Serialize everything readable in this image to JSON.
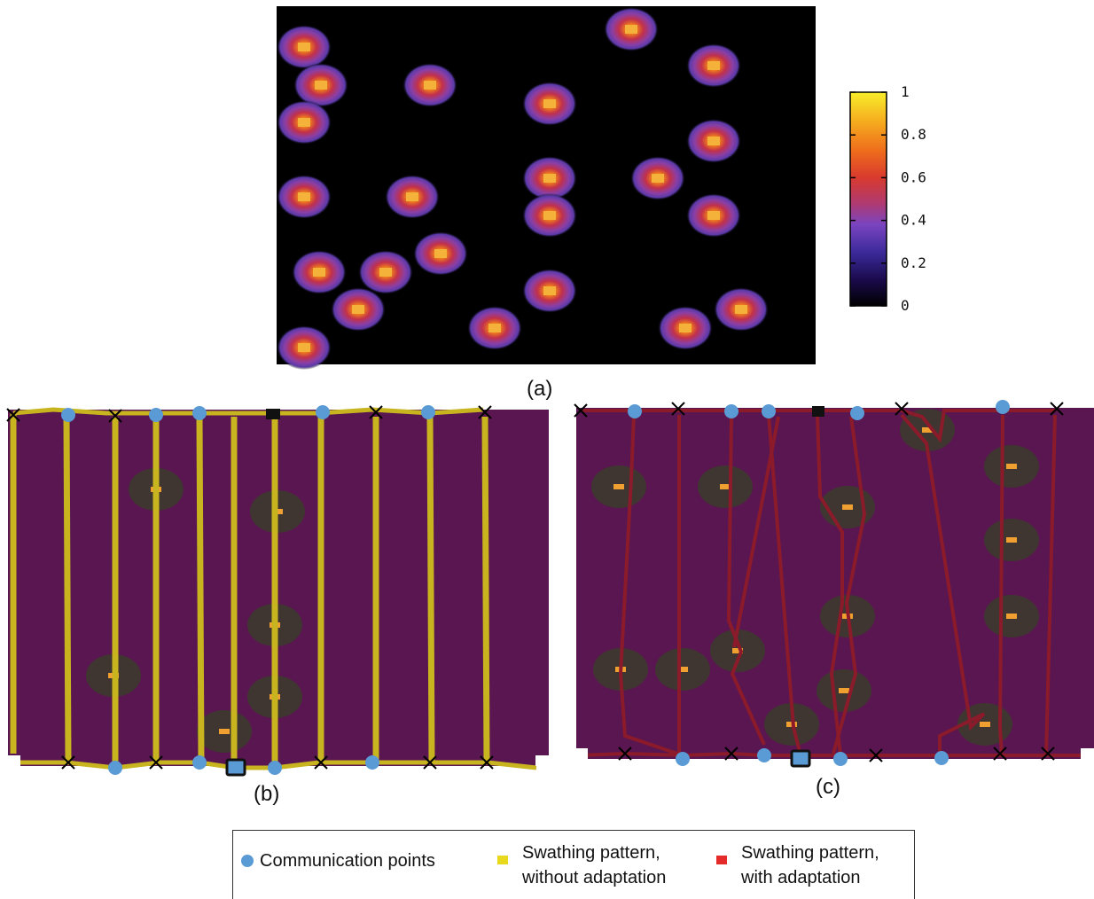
{
  "panel_labels": {
    "a": "(a)",
    "b": "(b)",
    "c": "(c)"
  },
  "colorbar": {
    "ticks": [
      "1",
      "0.8",
      "0.6",
      "0.4",
      "0.2",
      "0"
    ],
    "tick_values": [
      1,
      0.8,
      0.6,
      0.4,
      0.2,
      0
    ]
  },
  "legend": {
    "communication": "Communication points",
    "yellow_line1": "Swathing pattern,",
    "yellow_line2": "without adaptation",
    "red_line1": "Swathing pattern,",
    "red_line2": "with adaptation"
  },
  "colors": {
    "heatmap_bg": "#000000",
    "field_purple": "#5a1650",
    "swath_yellow": "#c8b41e",
    "swath_red": "#8b1a2a",
    "comm_point": "#5b9bd5",
    "hotspot_core": "#f08a2a"
  }
}
